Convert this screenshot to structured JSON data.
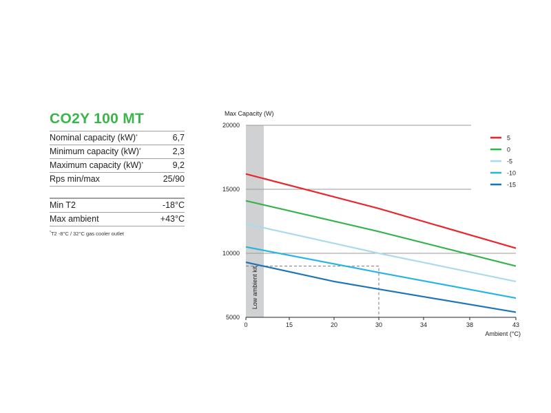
{
  "specs": {
    "title": "CO2Y 100 MT",
    "rows_top": [
      {
        "label": "Nominal capacity (kW)",
        "sup": "*",
        "value": "6,7"
      },
      {
        "label": "Minimum capacity (kW)",
        "sup": "*",
        "value": "2,3"
      },
      {
        "label": "Maximum capacity (kW)",
        "sup": "*",
        "value": "9,2"
      },
      {
        "label": "Rps min/max",
        "sup": "",
        "value": "25/90"
      }
    ],
    "rows_bottom": [
      {
        "label": "Min T2",
        "sup": "",
        "value": "-18°C"
      },
      {
        "label": "Max ambient",
        "sup": "",
        "value": "+43°C"
      }
    ],
    "note_sup": "*",
    "note": "T2 -8°C / 32°C gas cooler outlet"
  },
  "chart_data": {
    "type": "line",
    "ylabel": "Max Capacity (W)",
    "xlabel": "Ambient (°C)",
    "ylim": [
      5000,
      20000
    ],
    "yticks": [
      5000,
      10000,
      15000,
      20000
    ],
    "xticks": [
      "0",
      "15",
      "20",
      "30",
      "34",
      "38",
      "43"
    ],
    "shaded_region_label": "Low ambient kit",
    "shaded_region_x": [
      0,
      1.5
    ],
    "reference_point": {
      "x": "30",
      "y": 9000
    },
    "horizontal_gridlines_y": [
      15000,
      10000
    ],
    "legend_position": "top-right",
    "series": [
      {
        "name": "5",
        "color": "#e8262b",
        "points": [
          [
            0,
            16200
          ],
          [
            30,
            13500
          ],
          [
            43,
            10400
          ]
        ]
      },
      {
        "name": "0",
        "color": "#36b34a",
        "points": [
          [
            0,
            14100
          ],
          [
            30,
            11700
          ],
          [
            43,
            9000
          ]
        ]
      },
      {
        "name": "-5",
        "color": "#a9dbed",
        "points": [
          [
            0,
            12300
          ],
          [
            30,
            10000
          ],
          [
            43,
            7800
          ]
        ]
      },
      {
        "name": "-10",
        "color": "#25b5e3",
        "points": [
          [
            0,
            10500
          ],
          [
            30,
            8500
          ],
          [
            43,
            6500
          ]
        ]
      },
      {
        "name": "-15",
        "color": "#1d75b9",
        "points": [
          [
            0,
            9300
          ],
          [
            20,
            7800
          ],
          [
            30,
            7200
          ],
          [
            43,
            5400
          ]
        ]
      }
    ]
  }
}
